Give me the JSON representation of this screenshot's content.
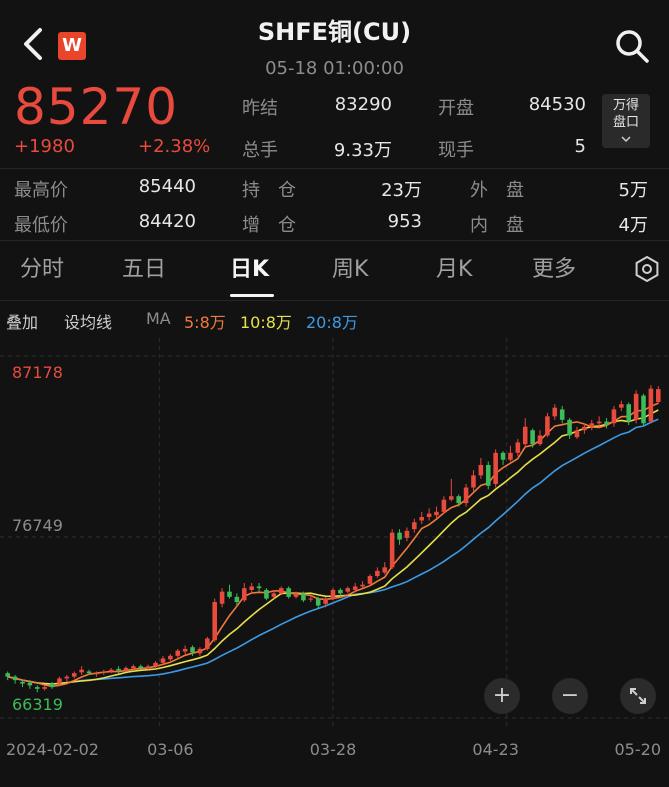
{
  "header": {
    "title": "SHFE铜(CU)",
    "datetime": "05-18 01:00:00",
    "logo_letter": "W"
  },
  "quote": {
    "price": "85270",
    "change": "+1980",
    "change_pct": "+2.38%",
    "fields": [
      {
        "label": "昨结",
        "value": "83290"
      },
      {
        "label": "开盘",
        "value": "84530"
      },
      {
        "label": "总手",
        "value": "9.33万"
      },
      {
        "label": "现手",
        "value": "5"
      },
      {
        "label": "最高价",
        "value": "85440"
      },
      {
        "label": "持　仓",
        "value": "23万"
      },
      {
        "label": "外　盘",
        "value": "5万"
      },
      {
        "label": "最低价",
        "value": "84420"
      },
      {
        "label": "增　仓",
        "value": "953"
      },
      {
        "label": "内　盘",
        "value": "4万"
      }
    ],
    "wande_line1": "万得",
    "wande_line2": "盘口"
  },
  "tabs": [
    "分时",
    "五日",
    "日K",
    "周K",
    "月K",
    "更多"
  ],
  "active_tab": "日K",
  "ma_bar": {
    "overlay": "叠加",
    "set_ma": "设均线",
    "ma": "MA",
    "ma5": "5:8万",
    "ma10": "10:8万",
    "ma20": "20:8万"
  },
  "colors": {
    "up": "#e84a3d",
    "down": "#3dbb58",
    "ma5": "#f07a3c",
    "ma10": "#e6e04a",
    "ma20": "#3d9be6",
    "bg": "#121212"
  },
  "chart_data": {
    "type": "candlestick",
    "y_labels": [
      "87178",
      "76749",
      "66319"
    ],
    "ylim": [
      66319,
      87178
    ],
    "x_labels": [
      "2024-02-02",
      "03-06",
      "03-28",
      "04-23",
      "05-20"
    ],
    "x_label_index": [
      0,
      22,
      44,
      66,
      88
    ],
    "close": [
      68700,
      68500,
      68300,
      68200,
      68000,
      68100,
      68100,
      68600,
      68700,
      68900,
      69100,
      68900,
      68900,
      69000,
      69100,
      69050,
      69200,
      69300,
      69200,
      69300,
      69500,
      69750,
      69900,
      70200,
      70300,
      70100,
      70300,
      70900,
      73000,
      73600,
      73300,
      73000,
      73800,
      73900,
      73800,
      73200,
      73500,
      73800,
      73300,
      73500,
      73100,
      73200,
      72800,
      73200,
      73700,
      73500,
      73800,
      73900,
      74000,
      74500,
      74800,
      75000,
      77000,
      76600,
      77100,
      77600,
      77900,
      78100,
      78200,
      78900,
      79100,
      78700,
      79600,
      80300,
      80900,
      79700,
      81600,
      81200,
      81600,
      82200,
      83100,
      82100,
      82600,
      83700,
      84200,
      83500,
      82600,
      82900,
      83100,
      83300,
      83400,
      83200,
      84100,
      84400,
      83400,
      85000,
      83300,
      85300,
      85270
    ],
    "open": [
      68900,
      68700,
      68400,
      68350,
      68100,
      68000,
      68300,
      68300,
      68600,
      68700,
      68950,
      69000,
      68900,
      68950,
      69000,
      69150,
      69050,
      69200,
      69300,
      69150,
      69300,
      69500,
      69700,
      69900,
      70150,
      70400,
      70050,
      70300,
      70800,
      72900,
      73600,
      73300,
      73100,
      73700,
      73900,
      73700,
      73300,
      73500,
      73800,
      73300,
      73500,
      73200,
      73200,
      72900,
      73200,
      73700,
      73600,
      73700,
      73900,
      74050,
      74500,
      74700,
      75000,
      77000,
      76700,
      77200,
      77700,
      77900,
      78000,
      78200,
      78900,
      79100,
      78700,
      79600,
      80300,
      80900,
      79800,
      81600,
      81200,
      81600,
      82100,
      82900,
      82100,
      82600,
      83700,
      84100,
      83500,
      82500,
      82900,
      83100,
      83300,
      83400,
      83300,
      84200,
      84400,
      83500,
      84900,
      83400,
      84530
    ],
    "high": [
      69000,
      68800,
      68500,
      68500,
      68200,
      68200,
      68400,
      68700,
      68800,
      69000,
      69300,
      69100,
      69000,
      69100,
      69200,
      69300,
      69300,
      69400,
      69400,
      69400,
      69600,
      69900,
      70000,
      70300,
      70500,
      70500,
      70400,
      71000,
      73200,
      73800,
      74000,
      73500,
      74100,
      74100,
      74100,
      73800,
      73700,
      73900,
      73900,
      73600,
      73600,
      73300,
      73300,
      73300,
      73800,
      73800,
      73900,
      74100,
      74200,
      74600,
      75000,
      75300,
      77200,
      77200,
      77300,
      77800,
      78200,
      78400,
      78500,
      79100,
      80100,
      79200,
      79800,
      80600,
      81300,
      81100,
      81800,
      81700,
      82000,
      82400,
      83600,
      83000,
      82900,
      83900,
      84400,
      84300,
      83600,
      83100,
      83300,
      83500,
      83700,
      83600,
      84300,
      84600,
      84500,
      85200,
      85000,
      85500,
      85440
    ],
    "low": [
      68500,
      68300,
      68100,
      68000,
      67800,
      67900,
      68000,
      68200,
      68400,
      68600,
      68800,
      68800,
      68700,
      68800,
      68900,
      68900,
      69000,
      69100,
      69100,
      69100,
      69200,
      69400,
      69600,
      69800,
      70000,
      69900,
      69900,
      70200,
      70700,
      72700,
      73200,
      72800,
      73000,
      73500,
      73600,
      73100,
      73200,
      73400,
      73200,
      73200,
      73000,
      73000,
      72600,
      72700,
      73100,
      73300,
      73500,
      73600,
      73800,
      73900,
      74400,
      74600,
      74900,
      76300,
      76500,
      77000,
      77500,
      77700,
      77800,
      78100,
      78800,
      78500,
      78500,
      79400,
      80100,
      79500,
      79600,
      80900,
      81100,
      81400,
      81900,
      81900,
      82000,
      82500,
      83500,
      83300,
      82400,
      82400,
      82700,
      82900,
      83100,
      83000,
      83100,
      84000,
      83200,
      83300,
      83200,
      83300,
      84420
    ]
  },
  "controls": {
    "zoom_in": "+",
    "zoom_out": "−"
  }
}
